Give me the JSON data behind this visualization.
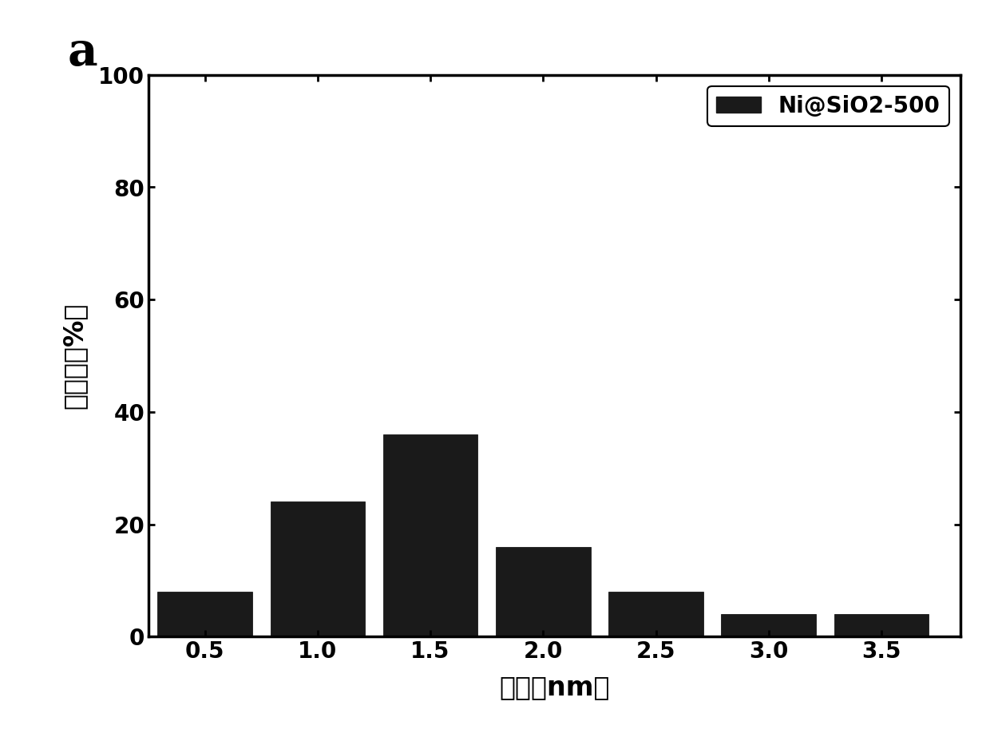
{
  "bar_centers": [
    0.5,
    1.0,
    1.5,
    2.0,
    2.5,
    3.0,
    3.5
  ],
  "bar_heights": [
    8,
    24,
    36,
    16,
    8,
    4,
    4
  ],
  "bar_width": 0.42,
  "bar_color": "#1a1a1a",
  "bar_edgecolor": "#000000",
  "xlim": [
    0.25,
    3.85
  ],
  "ylim": [
    0,
    100
  ],
  "xticks": [
    0.5,
    1.0,
    1.5,
    2.0,
    2.5,
    3.0,
    3.5
  ],
  "xtick_labels": [
    "0.5",
    "1.0",
    "1.5",
    "2.0",
    "2.5",
    "3.0",
    "3.5"
  ],
  "yticks": [
    0,
    20,
    40,
    60,
    80,
    100
  ],
  "ytick_labels": [
    "0",
    "20",
    "40",
    "60",
    "80",
    "100"
  ],
  "xlabel": "粒径（nm）",
  "ylabel": "百分比（%）",
  "legend_label": "Ni@SiO2-500",
  "panel_label": "a",
  "background_color": "#ffffff",
  "tick_fontsize": 20,
  "label_fontsize": 24,
  "legend_fontsize": 20,
  "panel_label_fontsize": 42,
  "linewidth": 2.5
}
